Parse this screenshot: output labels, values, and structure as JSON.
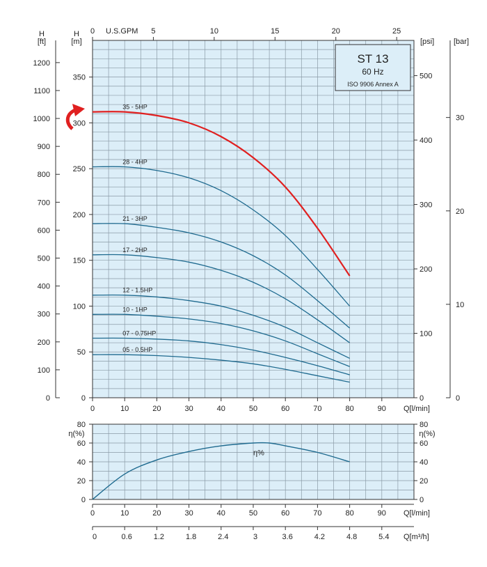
{
  "chart_data": [
    {
      "type": "line",
      "name": "head-chart",
      "title": "ST 13",
      "subtitle": "60 Hz",
      "standard": "ISO 9906 Annex A",
      "xlabel": "Q[l/min]",
      "ylabel": "H [m]",
      "xlim": [
        0,
        100
      ],
      "ylim": [
        0,
        390
      ],
      "x_ticks": [
        0,
        10,
        20,
        30,
        40,
        50,
        60,
        70,
        80,
        90
      ],
      "y_ticks": [
        0,
        50,
        100,
        150,
        200,
        250,
        300,
        350
      ],
      "grid": true,
      "plot_bg": "#dceef8",
      "series": [
        {
          "name": "35 - 5HP",
          "color": "#e02020",
          "x": [
            0,
            10,
            20,
            30,
            40,
            50,
            60,
            70,
            80
          ],
          "y": [
            312,
            312,
            308,
            300,
            285,
            262,
            230,
            185,
            133
          ]
        },
        {
          "name": "28 - 4HP",
          "color": "#1e6a8f",
          "x": [
            0,
            10,
            20,
            30,
            40,
            50,
            60,
            70,
            80
          ],
          "y": [
            252,
            252,
            248,
            240,
            226,
            205,
            177,
            140,
            100
          ]
        },
        {
          "name": "21 - 3HP",
          "color": "#1e6a8f",
          "x": [
            0,
            10,
            20,
            30,
            40,
            50,
            60,
            70,
            80
          ],
          "y": [
            190,
            190,
            186,
            180,
            170,
            155,
            134,
            106,
            76
          ]
        },
        {
          "name": "17 - 2HP",
          "color": "#1e6a8f",
          "x": [
            0,
            10,
            20,
            30,
            40,
            50,
            60,
            70,
            80
          ],
          "y": [
            156,
            156,
            153,
            148,
            139,
            126,
            108,
            85,
            60
          ]
        },
        {
          "name": "12 - 1.5HP",
          "color": "#1e6a8f",
          "x": [
            0,
            10,
            20,
            30,
            40,
            50,
            60,
            70,
            80
          ],
          "y": [
            112,
            112,
            110,
            106,
            100,
            90,
            77,
            60,
            43
          ]
        },
        {
          "name": "10 - 1HP",
          "color": "#1e6a8f",
          "x": [
            0,
            10,
            20,
            30,
            40,
            50,
            60,
            70,
            80
          ],
          "y": [
            91,
            91,
            89,
            86,
            81,
            73,
            62,
            48,
            34
          ]
        },
        {
          "name": "07 - 0.75HP",
          "color": "#1e6a8f",
          "x": [
            0,
            10,
            20,
            30,
            40,
            50,
            60,
            70,
            80
          ],
          "y": [
            65,
            65,
            64,
            62,
            58,
            52,
            44,
            35,
            25
          ]
        },
        {
          "name": "05 - 0.5HP",
          "color": "#1e6a8f",
          "x": [
            0,
            10,
            20,
            30,
            40,
            50,
            60,
            70,
            80
          ],
          "y": [
            47,
            47,
            46,
            44,
            41,
            37,
            31,
            24,
            17
          ]
        }
      ],
      "secondary_axes": {
        "ft": {
          "label": "H",
          "unit": "[ft]",
          "ticks": [
            0,
            100,
            200,
            300,
            400,
            500,
            600,
            700,
            800,
            900,
            1000,
            1100,
            1200
          ],
          "max": 1279.5
        },
        "psi": {
          "label": "[psi]",
          "ticks": [
            0,
            100,
            200,
            300,
            400,
            500
          ],
          "max": 554.7
        },
        "bar": {
          "label": "[bar]",
          "ticks": [
            0,
            10,
            20,
            30
          ],
          "max": 38.25
        },
        "gpm": {
          "label": "U.S.GPM",
          "ticks": [
            0,
            5,
            10,
            15,
            20,
            25
          ],
          "max": 26.42
        }
      }
    },
    {
      "type": "line",
      "name": "efficiency-chart",
      "xlabel": "Q[l/min]",
      "ylabel": "η(%)",
      "xlim": [
        0,
        100
      ],
      "ylim": [
        0,
        80
      ],
      "x_ticks": [
        0,
        10,
        20,
        30,
        40,
        50,
        60,
        70,
        80,
        90
      ],
      "y_ticks": [
        0,
        20,
        40,
        60,
        80
      ],
      "grid": true,
      "series": [
        {
          "name": "η%",
          "color": "#1e6a8f",
          "x": [
            0,
            10,
            20,
            30,
            40,
            50,
            55,
            60,
            70,
            80
          ],
          "y": [
            0,
            27,
            42,
            51,
            57,
            60,
            60,
            57,
            50,
            40
          ]
        }
      ],
      "secondary_axes": {
        "m3h": {
          "label": "Q[m³/h]",
          "ticks": [
            "0",
            "0.6",
            "1.2",
            "1.8",
            "2.4",
            "3",
            "3.6",
            "4.2",
            "4.8",
            "5.4"
          ],
          "tick_values": [
            0,
            0.6,
            1.2,
            1.8,
            2.4,
            3,
            3.6,
            4.2,
            4.8,
            5.4
          ],
          "max": 6
        }
      }
    }
  ]
}
